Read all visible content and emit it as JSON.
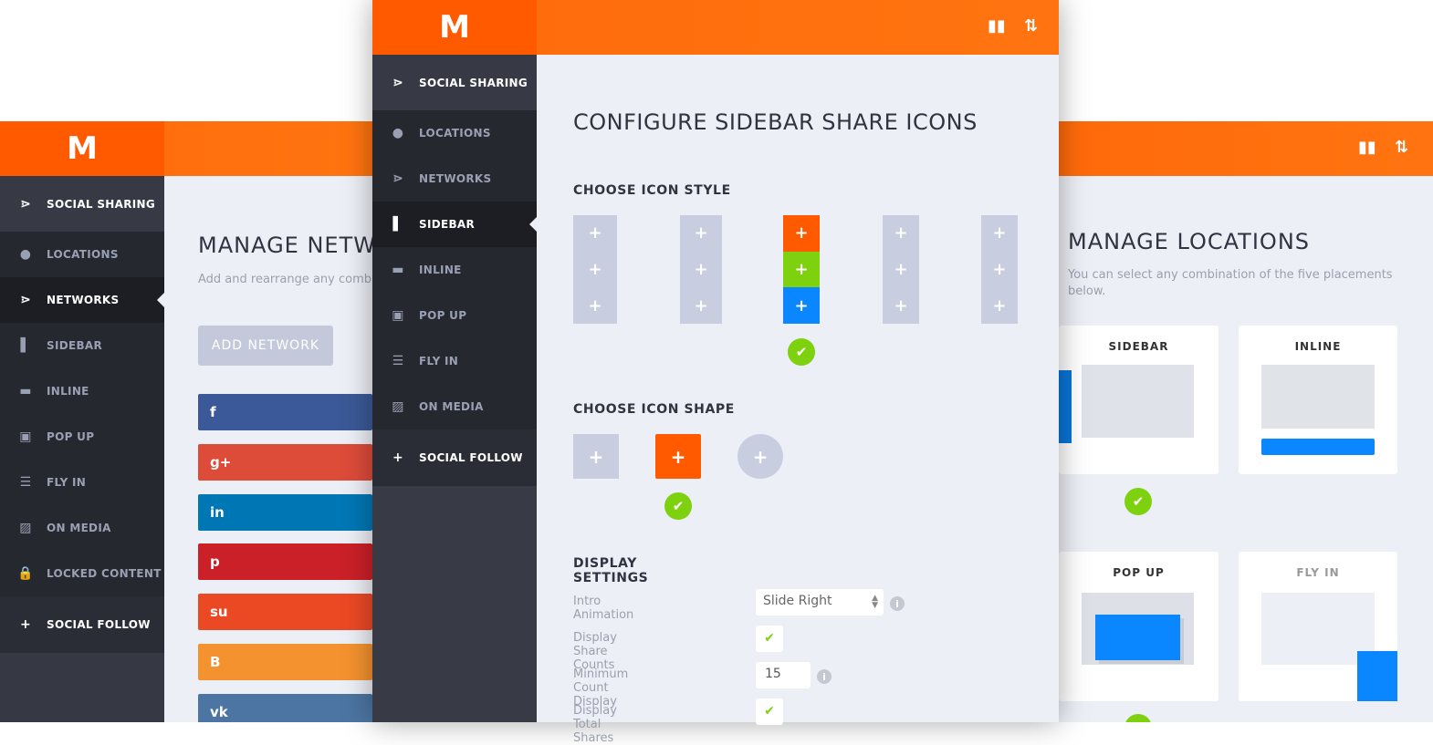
{
  "brand": {
    "logo": "M",
    "accent": "#ff6c0a"
  },
  "header_icons": [
    "bar-chart-icon",
    "import-export-icon"
  ],
  "left_panel": {
    "nav": [
      {
        "label": "SOCIAL SHARING",
        "icon": "share-icon"
      },
      {
        "label": "LOCATIONS",
        "icon": "pin-icon"
      },
      {
        "label": "NETWORKS",
        "icon": "share-icon"
      },
      {
        "label": "SIDEBAR",
        "icon": "sidebar-icon"
      },
      {
        "label": "INLINE",
        "icon": "inline-icon"
      },
      {
        "label": "POP UP",
        "icon": "popup-icon"
      },
      {
        "label": "FLY IN",
        "icon": "flyin-icon"
      },
      {
        "label": "ON MEDIA",
        "icon": "image-icon"
      },
      {
        "label": "LOCKED CONTENT",
        "icon": "lock-icon"
      },
      {
        "label": "SOCIAL FOLLOW",
        "icon": "plus-icon"
      }
    ],
    "active": "NETWORKS",
    "title": "MANAGE NETW",
    "subtitle": "Add and rearrange any combi",
    "add_button": "ADD NETWORK",
    "networks": [
      {
        "glyph": "f",
        "color": "#3b5998"
      },
      {
        "glyph": "g+",
        "color": "#dd4b39"
      },
      {
        "glyph": "in",
        "color": "#0077b5"
      },
      {
        "glyph": "p",
        "color": "#cb2027"
      },
      {
        "glyph": "su",
        "color": "#eb4924"
      },
      {
        "glyph": "B",
        "color": "#f4922f"
      },
      {
        "glyph": "vk",
        "color": "#4c75a3"
      }
    ]
  },
  "front_panel": {
    "nav": [
      {
        "label": "SOCIAL SHARING"
      },
      {
        "label": "LOCATIONS"
      },
      {
        "label": "NETWORKS"
      },
      {
        "label": "SIDEBAR"
      },
      {
        "label": "INLINE"
      },
      {
        "label": "POP UP"
      },
      {
        "label": "FLY IN"
      },
      {
        "label": "ON MEDIA"
      },
      {
        "label": "SOCIAL FOLLOW"
      }
    ],
    "active": "SIDEBAR",
    "title": "CONFIGURE SIDEBAR SHARE ICONS",
    "icon_style_heading": "CHOOSE ICON STYLE",
    "icon_style_selected": 3,
    "style3_colors": [
      "#ff5a00",
      "#7ed10e",
      "#0a86ff"
    ],
    "icon_shape_heading": "CHOOSE ICON SHAPE",
    "icon_shape_selected": 2,
    "display_heading": "DISPLAY SETTINGS",
    "settings": {
      "intro_animation": {
        "label": "Intro Animation",
        "value": "Slide Right"
      },
      "share_counts": {
        "label": "Display Share Counts",
        "checked": true
      },
      "min_count": {
        "label": "Minimum Count Display",
        "value": "15"
      },
      "total_shares": {
        "label": "Display Total Shares",
        "checked": true
      }
    }
  },
  "right_panel": {
    "title": "MANAGE LOCATIONS",
    "subtitle": "You can select any combination of the five placements below.",
    "cards": [
      {
        "label": "SIDEBAR",
        "selected": true
      },
      {
        "label": "INLINE",
        "selected": false
      },
      {
        "label": "POP UP",
        "selected": true
      },
      {
        "label": "FLY IN",
        "selected": false
      }
    ]
  }
}
